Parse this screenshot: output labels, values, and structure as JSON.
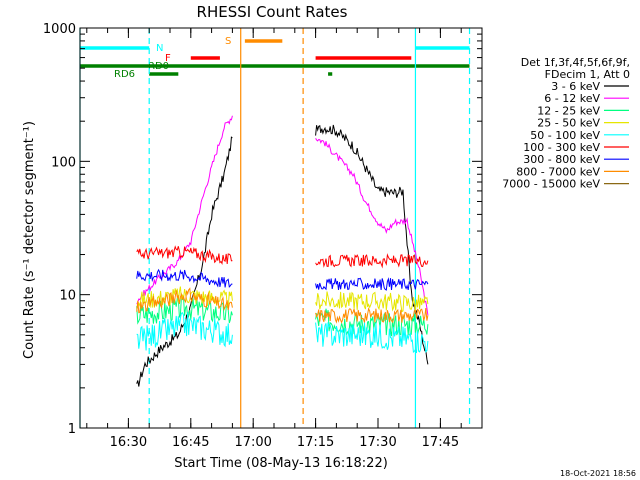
{
  "chart_data": {
    "type": "line",
    "title": "RHESSI Count Rates",
    "xlabel": "Start Time (08-May-13 16:18:22)",
    "ylabel": "Count Rate (s⁻¹ detector segment⁻¹)",
    "y_scale": "log",
    "ylim": [
      1,
      1000
    ],
    "xlim": [
      "16:18:22",
      "17:55:00"
    ],
    "x_ticks": [
      "16:30",
      "16:45",
      "17:00",
      "17:15",
      "17:30",
      "17:45"
    ],
    "y_ticks": [
      "1",
      "10",
      "100",
      "1000"
    ],
    "timestamp": "18-Oct-2021 18:56",
    "legend": {
      "placement": "right",
      "header": [
        "Det 1f,3f,4f,5f,6f,9f,",
        "FDecim 1, Att 0"
      ],
      "entries": [
        {
          "label": "3 - 6 keV",
          "color": "#000000"
        },
        {
          "label": "6 - 12 keV",
          "color": "#ff00ff"
        },
        {
          "label": "12 - 25 keV",
          "color": "#00ff80"
        },
        {
          "label": "25 - 50 keV",
          "color": "#e6e600"
        },
        {
          "label": "50 - 100 keV",
          "color": "#00ffff"
        },
        {
          "label": "100 - 300 keV",
          "color": "#ff0000"
        },
        {
          "label": "300 - 800 keV",
          "color": "#0000ff"
        },
        {
          "label": "800 - 7000 keV",
          "color": "#ff8c00"
        },
        {
          "label": "7000 - 15000 keV",
          "color": "#8b6914"
        }
      ]
    },
    "series": [
      {
        "name": "3 - 6 keV",
        "color": "#000000",
        "segments": [
          [
            [
              "16:32",
              2
            ],
            [
              "16:34",
              3
            ],
            [
              "16:38",
              4
            ],
            [
              "16:42",
              5
            ],
            [
              "16:45",
              8
            ],
            [
              "16:48",
              18
            ],
            [
              "16:50",
              40
            ],
            [
              "16:53",
              80
            ],
            [
              "16:55",
              150
            ]
          ],
          [
            [
              "17:15",
              170
            ],
            [
              "17:17",
              180
            ],
            [
              "17:20",
              170
            ],
            [
              "17:24",
              130
            ],
            [
              "17:27",
              90
            ],
            [
              "17:30",
              60
            ],
            [
              "17:34",
              58
            ],
            [
              "17:36",
              60
            ],
            [
              "17:38",
              10
            ],
            [
              "17:40",
              6
            ],
            [
              "17:42",
              3
            ]
          ]
        ]
      },
      {
        "name": "6 - 12 keV",
        "color": "#ff00ff",
        "segments": [
          [
            [
              "16:32",
              9
            ],
            [
              "16:37",
              13
            ],
            [
              "16:42",
              18
            ],
            [
              "16:45",
              25
            ],
            [
              "16:48",
              55
            ],
            [
              "16:50",
              90
            ],
            [
              "16:53",
              180
            ],
            [
              "16:55",
              220
            ]
          ],
          [
            [
              "17:15",
              150
            ],
            [
              "17:17",
              140
            ],
            [
              "17:20",
              110
            ],
            [
              "17:24",
              80
            ],
            [
              "17:27",
              50
            ],
            [
              "17:30",
              35
            ],
            [
              "17:32",
              30
            ],
            [
              "17:34",
              35
            ],
            [
              "17:37",
              36
            ],
            [
              "17:40",
              15
            ],
            [
              "17:42",
              7
            ]
          ]
        ]
      },
      {
        "name": "12 - 25 keV",
        "color": "#00ff80",
        "segments": [
          [
            [
              "16:32",
              7
            ],
            [
              "16:44",
              8
            ],
            [
              "16:55",
              7
            ]
          ],
          [
            [
              "17:15",
              6.5
            ],
            [
              "17:28",
              6
            ],
            [
              "17:42",
              6
            ]
          ]
        ]
      },
      {
        "name": "25 - 50 keV",
        "color": "#e6e600",
        "segments": [
          [
            [
              "16:32",
              9
            ],
            [
              "16:44",
              10
            ],
            [
              "16:55",
              9
            ]
          ],
          [
            [
              "17:15",
              9
            ],
            [
              "17:28",
              9
            ],
            [
              "17:42",
              8.5
            ]
          ]
        ]
      },
      {
        "name": "50 - 100 keV",
        "color": "#00ffff",
        "segments": [
          [
            [
              "16:32",
              4.5
            ],
            [
              "16:44",
              6
            ],
            [
              "16:55",
              5
            ]
          ],
          [
            [
              "17:15",
              5
            ],
            [
              "17:28",
              5
            ],
            [
              "17:42",
              4.5
            ]
          ]
        ]
      },
      {
        "name": "100 - 300 keV",
        "color": "#ff0000",
        "segments": [
          [
            [
              "16:32",
              20
            ],
            [
              "16:44",
              21
            ],
            [
              "16:55",
              18
            ]
          ],
          [
            [
              "17:15",
              18
            ],
            [
              "17:28",
              18
            ],
            [
              "17:42",
              18
            ]
          ]
        ]
      },
      {
        "name": "300 - 800 keV",
        "color": "#0000ff",
        "segments": [
          [
            [
              "16:32",
              14
            ],
            [
              "16:44",
              14
            ],
            [
              "16:55",
              12
            ]
          ],
          [
            [
              "17:15",
              12
            ],
            [
              "17:28",
              12
            ],
            [
              "17:42",
              12
            ]
          ]
        ]
      },
      {
        "name": "800 - 7000 keV",
        "color": "#ff8c00",
        "segments": [
          [
            [
              "16:32",
              8
            ],
            [
              "16:44",
              10
            ],
            [
              "16:55",
              8
            ]
          ],
          [
            [
              "17:15",
              7
            ],
            [
              "17:28",
              7
            ],
            [
              "17:42",
              7
            ]
          ]
        ]
      },
      {
        "name": "7000 - 15000 keV",
        "color": "#8b6914",
        "segments": []
      }
    ],
    "flag_bars": [
      {
        "label": "N",
        "color": "#00ffff",
        "intervals": [
          [
            "16:18:22",
            "16:35"
          ],
          [
            "17:39",
            "17:52"
          ]
        ]
      },
      {
        "label": "F",
        "color": "#ff0000",
        "intervals": [
          [
            "16:45",
            "16:52"
          ],
          [
            "17:15",
            "17:38"
          ]
        ]
      },
      {
        "label": "S",
        "color": "#ff8c00",
        "intervals": [
          [
            "16:58",
            "17:07"
          ]
        ]
      },
      {
        "label": "RD0",
        "color": "#008000",
        "intervals": [
          [
            "16:18:22",
            "17:52"
          ]
        ]
      },
      {
        "label": "RD6",
        "color": "#008000",
        "intervals": [
          [
            "16:35",
            "16:42"
          ],
          [
            "17:18",
            "17:19"
          ]
        ]
      }
    ],
    "vertical_lines": [
      {
        "time": "16:18:22",
        "color": "#00ffff",
        "style": "solid"
      },
      {
        "time": "16:35",
        "color": "#00ffff",
        "style": "dashed"
      },
      {
        "time": "16:57",
        "color": "#ff8c00",
        "style": "solid"
      },
      {
        "time": "17:12",
        "color": "#ff8c00",
        "style": "dashed"
      },
      {
        "time": "17:39",
        "color": "#00ffff",
        "style": "solid"
      },
      {
        "time": "17:52",
        "color": "#00ffff",
        "style": "dashed"
      }
    ]
  }
}
